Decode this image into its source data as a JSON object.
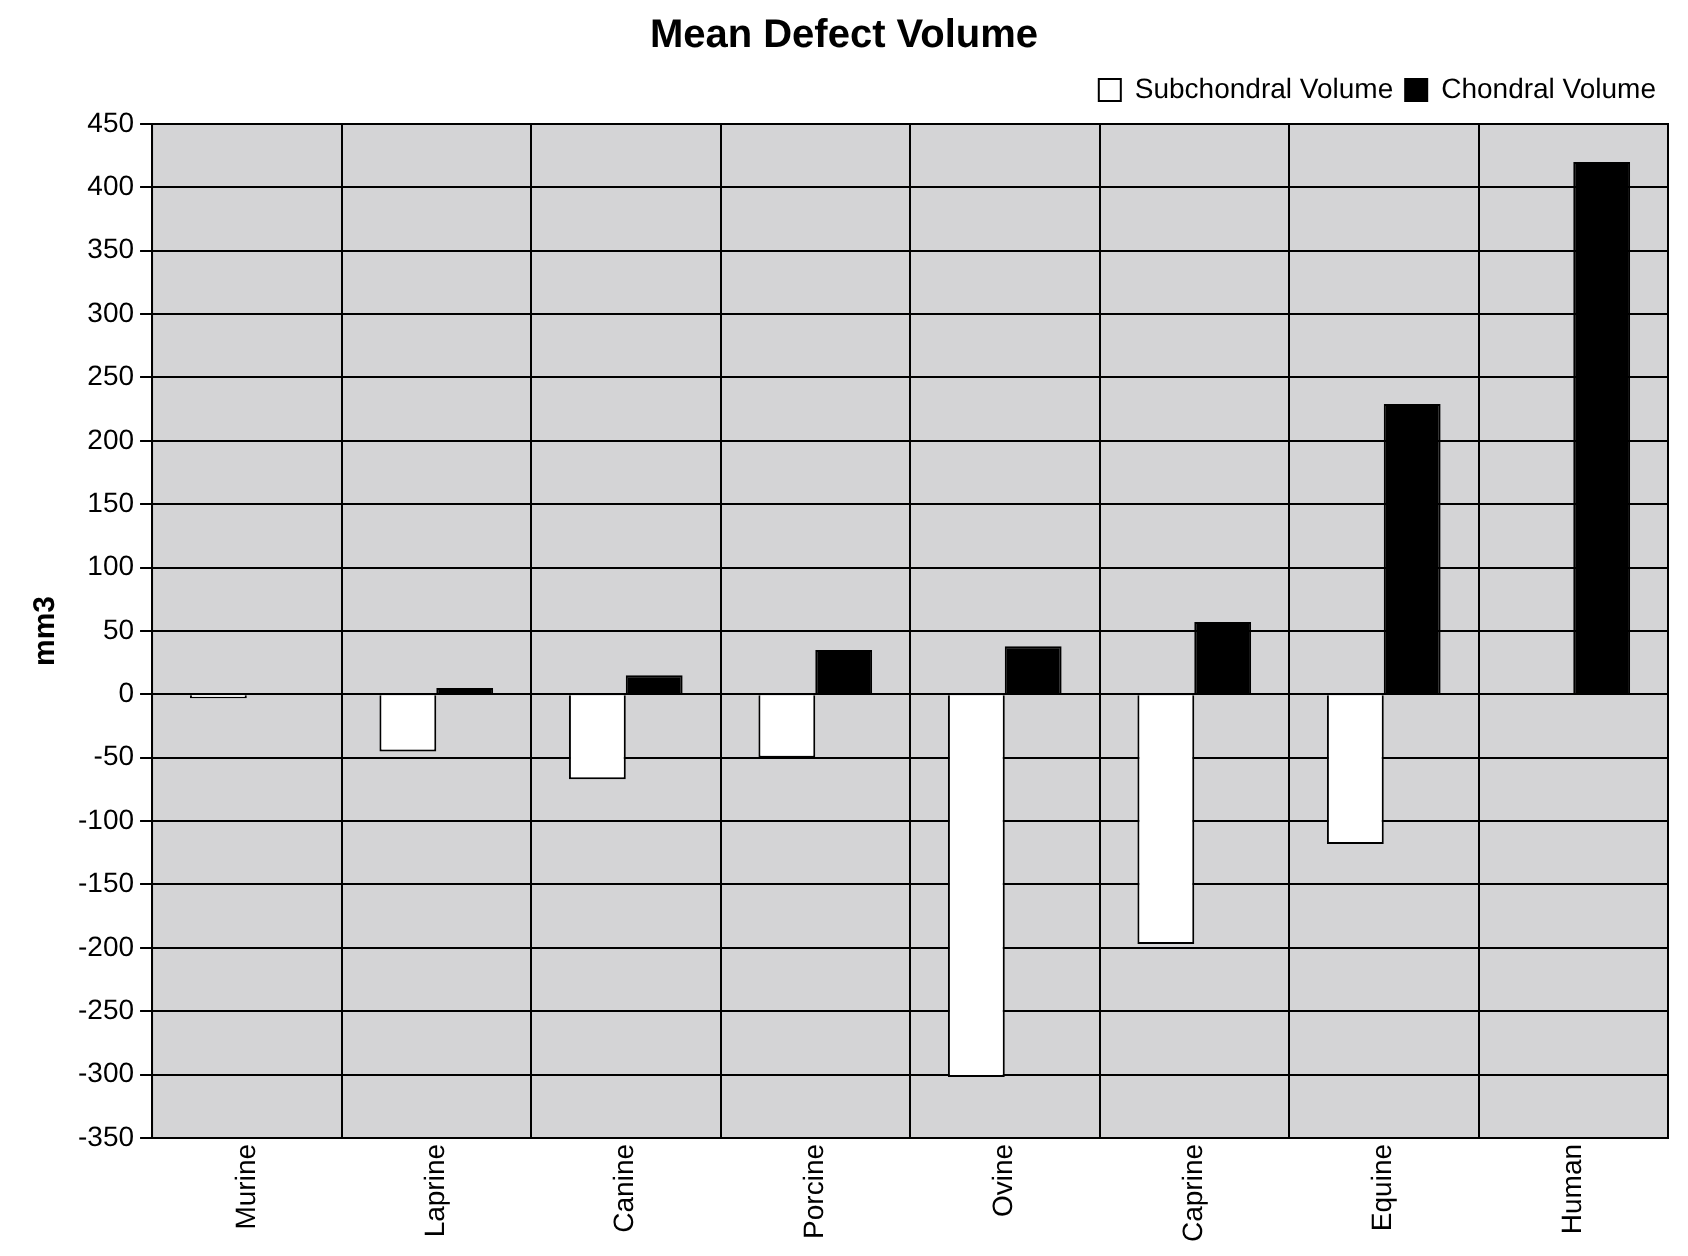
{
  "chart_data": {
    "type": "bar",
    "title": "Mean Defect Volume",
    "ylabel": "mm3",
    "categories": [
      "Murine",
      "Laprine",
      "Canine",
      "Porcine",
      "Ovine",
      "Caprine",
      "Equine",
      "Human"
    ],
    "series": [
      {
        "name": "Subchondral Volume",
        "color": "#ffffff",
        "values": [
          -3,
          -45,
          -67,
          -50,
          -302,
          -197,
          -118,
          null
        ]
      },
      {
        "name": "Chondral Volume",
        "color": "#000000",
        "values": [
          null,
          5,
          15,
          35,
          38,
          57,
          229,
          420
        ]
      }
    ],
    "ylim": [
      -350,
      450
    ],
    "yticks": [
      -350,
      -300,
      -250,
      -200,
      -150,
      -100,
      -50,
      0,
      50,
      100,
      150,
      200,
      250,
      300,
      350,
      400,
      450
    ],
    "grid": true,
    "legend": "top right"
  }
}
